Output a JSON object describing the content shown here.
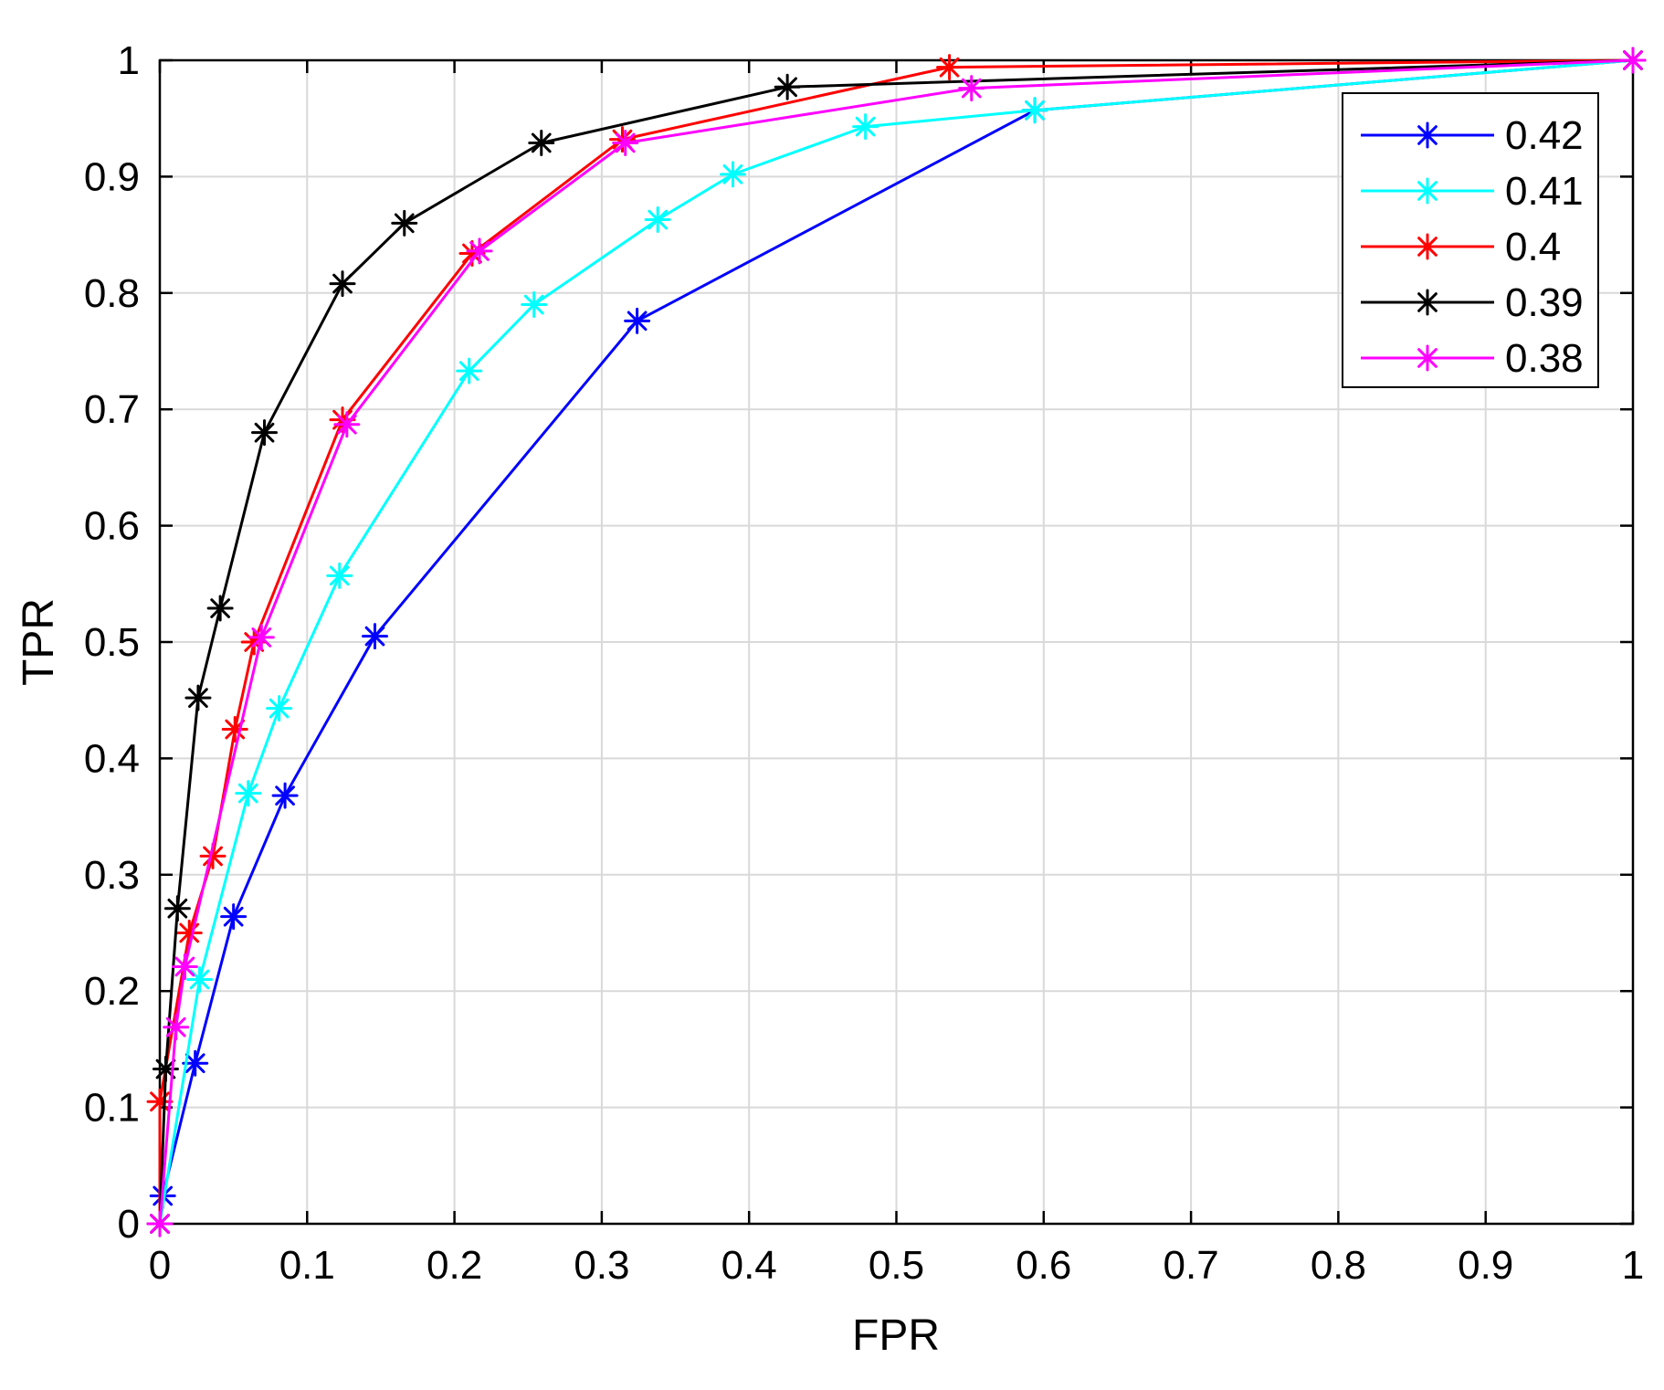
{
  "chart_data": {
    "type": "line",
    "title": "",
    "xlabel": "FPR",
    "ylabel": "TPR",
    "xlim": [
      0,
      1
    ],
    "ylim": [
      0,
      1
    ],
    "x_ticks": [
      "0",
      "0.1",
      "0.2",
      "0.3",
      "0.4",
      "0.5",
      "0.6",
      "0.7",
      "0.8",
      "0.9",
      "1"
    ],
    "y_ticks": [
      "0",
      "0.1",
      "0.2",
      "0.3",
      "0.4",
      "0.5",
      "0.6",
      "0.7",
      "0.8",
      "0.9",
      "1"
    ],
    "grid": true,
    "legend_position": "top-right",
    "marker": "asterisk",
    "series": [
      {
        "name": "0.42",
        "color": "#0000ff",
        "points": [
          [
            0.0,
            0.0
          ],
          [
            0.002,
            0.024
          ],
          [
            0.024,
            0.138
          ],
          [
            0.05,
            0.264
          ],
          [
            0.085,
            0.368
          ],
          [
            0.146,
            0.505
          ],
          [
            0.324,
            0.776
          ],
          [
            0.594,
            0.957
          ],
          [
            1.0,
            1.0
          ]
        ]
      },
      {
        "name": "0.41",
        "color": "#00ffff",
        "points": [
          [
            0.0,
            0.0
          ],
          [
            0.027,
            0.21
          ],
          [
            0.06,
            0.37
          ],
          [
            0.081,
            0.443
          ],
          [
            0.122,
            0.557
          ],
          [
            0.21,
            0.733
          ],
          [
            0.254,
            0.79
          ],
          [
            0.338,
            0.863
          ],
          [
            0.389,
            0.902
          ],
          [
            0.479,
            0.943
          ],
          [
            0.594,
            0.957
          ],
          [
            1.0,
            1.0
          ]
        ]
      },
      {
        "name": "0.4",
        "color": "#ff0000",
        "points": [
          [
            0.0,
            0.0
          ],
          [
            0.0,
            0.105
          ],
          [
            0.02,
            0.25
          ],
          [
            0.036,
            0.316
          ],
          [
            0.051,
            0.425
          ],
          [
            0.064,
            0.5
          ],
          [
            0.124,
            0.691
          ],
          [
            0.212,
            0.834
          ],
          [
            0.314,
            0.932
          ],
          [
            0.536,
            0.994
          ],
          [
            1.0,
            1.0
          ]
        ]
      },
      {
        "name": "0.39",
        "color": "#000000",
        "points": [
          [
            0.0,
            0.0
          ],
          [
            0.004,
            0.133
          ],
          [
            0.012,
            0.271
          ],
          [
            0.026,
            0.452
          ],
          [
            0.041,
            0.529
          ],
          [
            0.071,
            0.68
          ],
          [
            0.124,
            0.808
          ],
          [
            0.166,
            0.86
          ],
          [
            0.259,
            0.929
          ],
          [
            0.426,
            0.977
          ],
          [
            1.0,
            1.0
          ]
        ]
      },
      {
        "name": "0.38",
        "color": "#ff00ff",
        "points": [
          [
            0.0,
            0.0
          ],
          [
            0.011,
            0.169
          ],
          [
            0.017,
            0.221
          ],
          [
            0.069,
            0.504
          ],
          [
            0.127,
            0.687
          ],
          [
            0.217,
            0.836
          ],
          [
            0.316,
            0.929
          ],
          [
            0.551,
            0.976
          ],
          [
            1.0,
            1.0
          ]
        ]
      }
    ]
  }
}
